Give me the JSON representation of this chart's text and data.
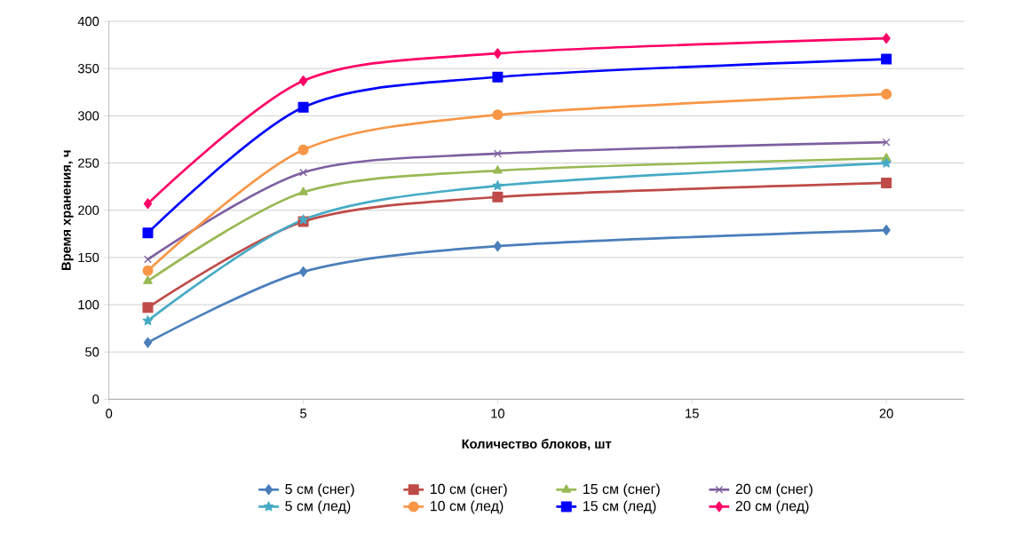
{
  "chart_data": {
    "type": "line",
    "xlabel": "Количество блоков, шт",
    "ylabel": "Время хранения, ч",
    "xlim": [
      0,
      22
    ],
    "xticks": [
      0,
      5,
      10,
      15,
      20
    ],
    "ylim": [
      0,
      400
    ],
    "yticks": [
      0,
      50,
      100,
      150,
      200,
      250,
      300,
      350,
      400
    ],
    "grid": "y",
    "legend": "bottom",
    "x": [
      1,
      5,
      10,
      20
    ],
    "series": [
      {
        "name": "5 см (снег)",
        "color": "#4a7ebb",
        "marker": "diamond",
        "values": [
          60,
          135,
          162,
          179
        ]
      },
      {
        "name": "10 см (снег)",
        "color": "#be4b48",
        "marker": "square",
        "values": [
          97,
          188,
          214,
          229
        ]
      },
      {
        "name": "15 см (снег)",
        "color": "#98b954",
        "marker": "triangle",
        "values": [
          125,
          219,
          242,
          255
        ]
      },
      {
        "name": "20 см (снег)",
        "color": "#7d60a0",
        "marker": "cross",
        "values": [
          148,
          240,
          260,
          272
        ]
      },
      {
        "name": "5 см (лед)",
        "color": "#46aac5",
        "marker": "star",
        "values": [
          83,
          190,
          226,
          250
        ]
      },
      {
        "name": "10 см (лед)",
        "color": "#f79646",
        "marker": "circle",
        "values": [
          136,
          264,
          301,
          323
        ]
      },
      {
        "name": "15 см (лед)",
        "color": "#0000ff",
        "marker": "square",
        "values": [
          176,
          309,
          341,
          360
        ]
      },
      {
        "name": "20 см (лед)",
        "color": "#ff0066",
        "marker": "diamond",
        "values": [
          207,
          337,
          366,
          382
        ]
      }
    ]
  }
}
